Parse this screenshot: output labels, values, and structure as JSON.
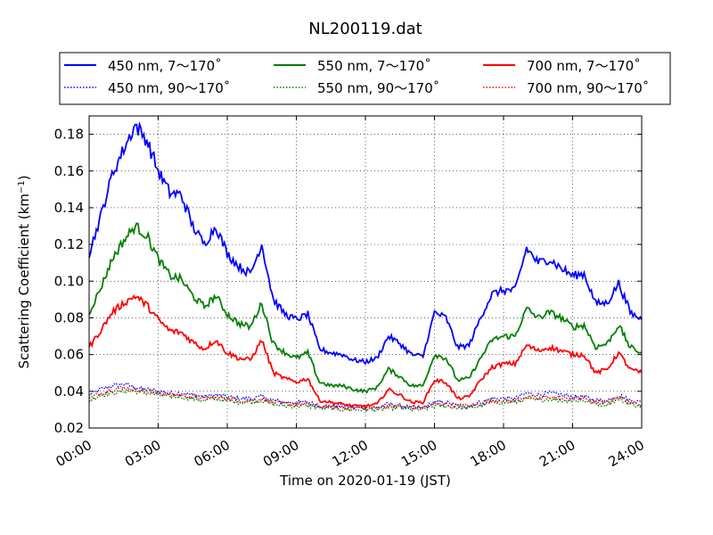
{
  "chart_data": {
    "type": "line",
    "title": "NL200119.dat",
    "xlabel": "Time on 2020-01-19 (JST)",
    "ylabel_main": "Scattering Coefficient (km",
    "ylabel_sup": "−1",
    "ylabel_close": ")",
    "xlim": [
      0,
      24
    ],
    "ylim": [
      0.02,
      0.19
    ],
    "x_ticks": [
      0,
      3,
      6,
      9,
      12,
      15,
      18,
      21,
      24
    ],
    "x_tick_labels": [
      "00:00",
      "03:00",
      "06:00",
      "09:00",
      "12:00",
      "15:00",
      "18:00",
      "21:00",
      "24:00"
    ],
    "y_ticks": [
      0.02,
      0.04,
      0.06,
      0.08,
      0.1,
      0.12,
      0.14,
      0.16,
      0.18
    ],
    "y_tick_labels": [
      "0.02",
      "0.04",
      "0.06",
      "0.08",
      "0.10",
      "0.12",
      "0.14",
      "0.16",
      "0.18"
    ],
    "grid": true,
    "legend_placement": "top, outside plot, 3 columns",
    "x": [
      0,
      0.5,
      1,
      1.5,
      2,
      2.5,
      3,
      3.5,
      4,
      4.5,
      5,
      5.5,
      6,
      6.5,
      7,
      7.5,
      8,
      8.5,
      9,
      9.5,
      10,
      10.5,
      11,
      11.5,
      12,
      12.5,
      13,
      13.5,
      14,
      14.5,
      15,
      15.5,
      16,
      16.5,
      17,
      17.5,
      18,
      18.5,
      19,
      19.5,
      20,
      20.5,
      21,
      21.5,
      22,
      22.5,
      23,
      23.5,
      24
    ],
    "series": [
      {
        "name": "450 nm, 7～170˚",
        "color": "#0000ff",
        "style": "solid",
        "values": [
          0.115,
          0.135,
          0.158,
          0.172,
          0.185,
          0.177,
          0.16,
          0.148,
          0.147,
          0.13,
          0.12,
          0.13,
          0.115,
          0.108,
          0.104,
          0.12,
          0.09,
          0.082,
          0.079,
          0.082,
          0.063,
          0.061,
          0.06,
          0.057,
          0.056,
          0.058,
          0.07,
          0.066,
          0.06,
          0.059,
          0.083,
          0.08,
          0.064,
          0.065,
          0.08,
          0.093,
          0.095,
          0.095,
          0.118,
          0.11,
          0.112,
          0.107,
          0.103,
          0.104,
          0.088,
          0.088,
          0.099,
          0.083,
          0.079
        ]
      },
      {
        "name": "550 nm, 7～170˚",
        "color": "#008000",
        "style": "solid",
        "values": [
          0.083,
          0.096,
          0.112,
          0.122,
          0.13,
          0.125,
          0.112,
          0.103,
          0.101,
          0.092,
          0.086,
          0.092,
          0.082,
          0.077,
          0.075,
          0.088,
          0.066,
          0.061,
          0.058,
          0.061,
          0.045,
          0.043,
          0.043,
          0.041,
          0.04,
          0.042,
          0.052,
          0.048,
          0.043,
          0.043,
          0.06,
          0.058,
          0.046,
          0.047,
          0.058,
          0.068,
          0.07,
          0.07,
          0.085,
          0.08,
          0.083,
          0.08,
          0.075,
          0.076,
          0.064,
          0.066,
          0.076,
          0.064,
          0.061
        ]
      },
      {
        "name": "700 nm, 7～170˚",
        "color": "#ff0000",
        "style": "solid",
        "values": [
          0.064,
          0.073,
          0.083,
          0.088,
          0.092,
          0.087,
          0.079,
          0.073,
          0.072,
          0.067,
          0.063,
          0.068,
          0.061,
          0.058,
          0.057,
          0.068,
          0.05,
          0.047,
          0.045,
          0.047,
          0.035,
          0.034,
          0.033,
          0.032,
          0.032,
          0.033,
          0.041,
          0.038,
          0.034,
          0.034,
          0.046,
          0.045,
          0.036,
          0.037,
          0.046,
          0.053,
          0.055,
          0.055,
          0.065,
          0.062,
          0.064,
          0.062,
          0.06,
          0.06,
          0.05,
          0.052,
          0.061,
          0.052,
          0.05
        ]
      },
      {
        "name": "450 nm, 90～170˚",
        "color": "#0000ff",
        "style": "dotted",
        "values": [
          0.038,
          0.041,
          0.043,
          0.044,
          0.042,
          0.041,
          0.04,
          0.039,
          0.039,
          0.038,
          0.037,
          0.038,
          0.037,
          0.036,
          0.036,
          0.037,
          0.035,
          0.034,
          0.034,
          0.034,
          0.032,
          0.032,
          0.032,
          0.031,
          0.031,
          0.031,
          0.033,
          0.032,
          0.031,
          0.031,
          0.034,
          0.034,
          0.032,
          0.032,
          0.034,
          0.036,
          0.036,
          0.036,
          0.039,
          0.038,
          0.039,
          0.038,
          0.037,
          0.037,
          0.035,
          0.035,
          0.038,
          0.035,
          0.034
        ]
      },
      {
        "name": "550 nm, 90～170˚",
        "color": "#008000",
        "style": "dotted",
        "values": [
          0.035,
          0.038,
          0.039,
          0.04,
          0.04,
          0.039,
          0.038,
          0.037,
          0.037,
          0.036,
          0.035,
          0.036,
          0.035,
          0.034,
          0.034,
          0.035,
          0.033,
          0.032,
          0.032,
          0.032,
          0.031,
          0.031,
          0.03,
          0.03,
          0.03,
          0.03,
          0.031,
          0.031,
          0.03,
          0.03,
          0.032,
          0.032,
          0.031,
          0.031,
          0.032,
          0.034,
          0.034,
          0.034,
          0.036,
          0.035,
          0.036,
          0.035,
          0.035,
          0.035,
          0.033,
          0.033,
          0.036,
          0.033,
          0.032
        ]
      },
      {
        "name": "700 nm, 90～170˚",
        "color": "#ff0000",
        "style": "dotted",
        "values": [
          0.036,
          0.039,
          0.041,
          0.042,
          0.041,
          0.04,
          0.039,
          0.038,
          0.038,
          0.037,
          0.036,
          0.037,
          0.036,
          0.035,
          0.035,
          0.036,
          0.034,
          0.033,
          0.033,
          0.033,
          0.032,
          0.031,
          0.031,
          0.031,
          0.031,
          0.031,
          0.032,
          0.032,
          0.031,
          0.031,
          0.033,
          0.033,
          0.032,
          0.032,
          0.033,
          0.035,
          0.035,
          0.035,
          0.037,
          0.036,
          0.037,
          0.036,
          0.036,
          0.036,
          0.034,
          0.034,
          0.037,
          0.034,
          0.033
        ]
      }
    ],
    "legend_order": [
      0,
      1,
      2,
      3,
      4,
      5
    ]
  }
}
